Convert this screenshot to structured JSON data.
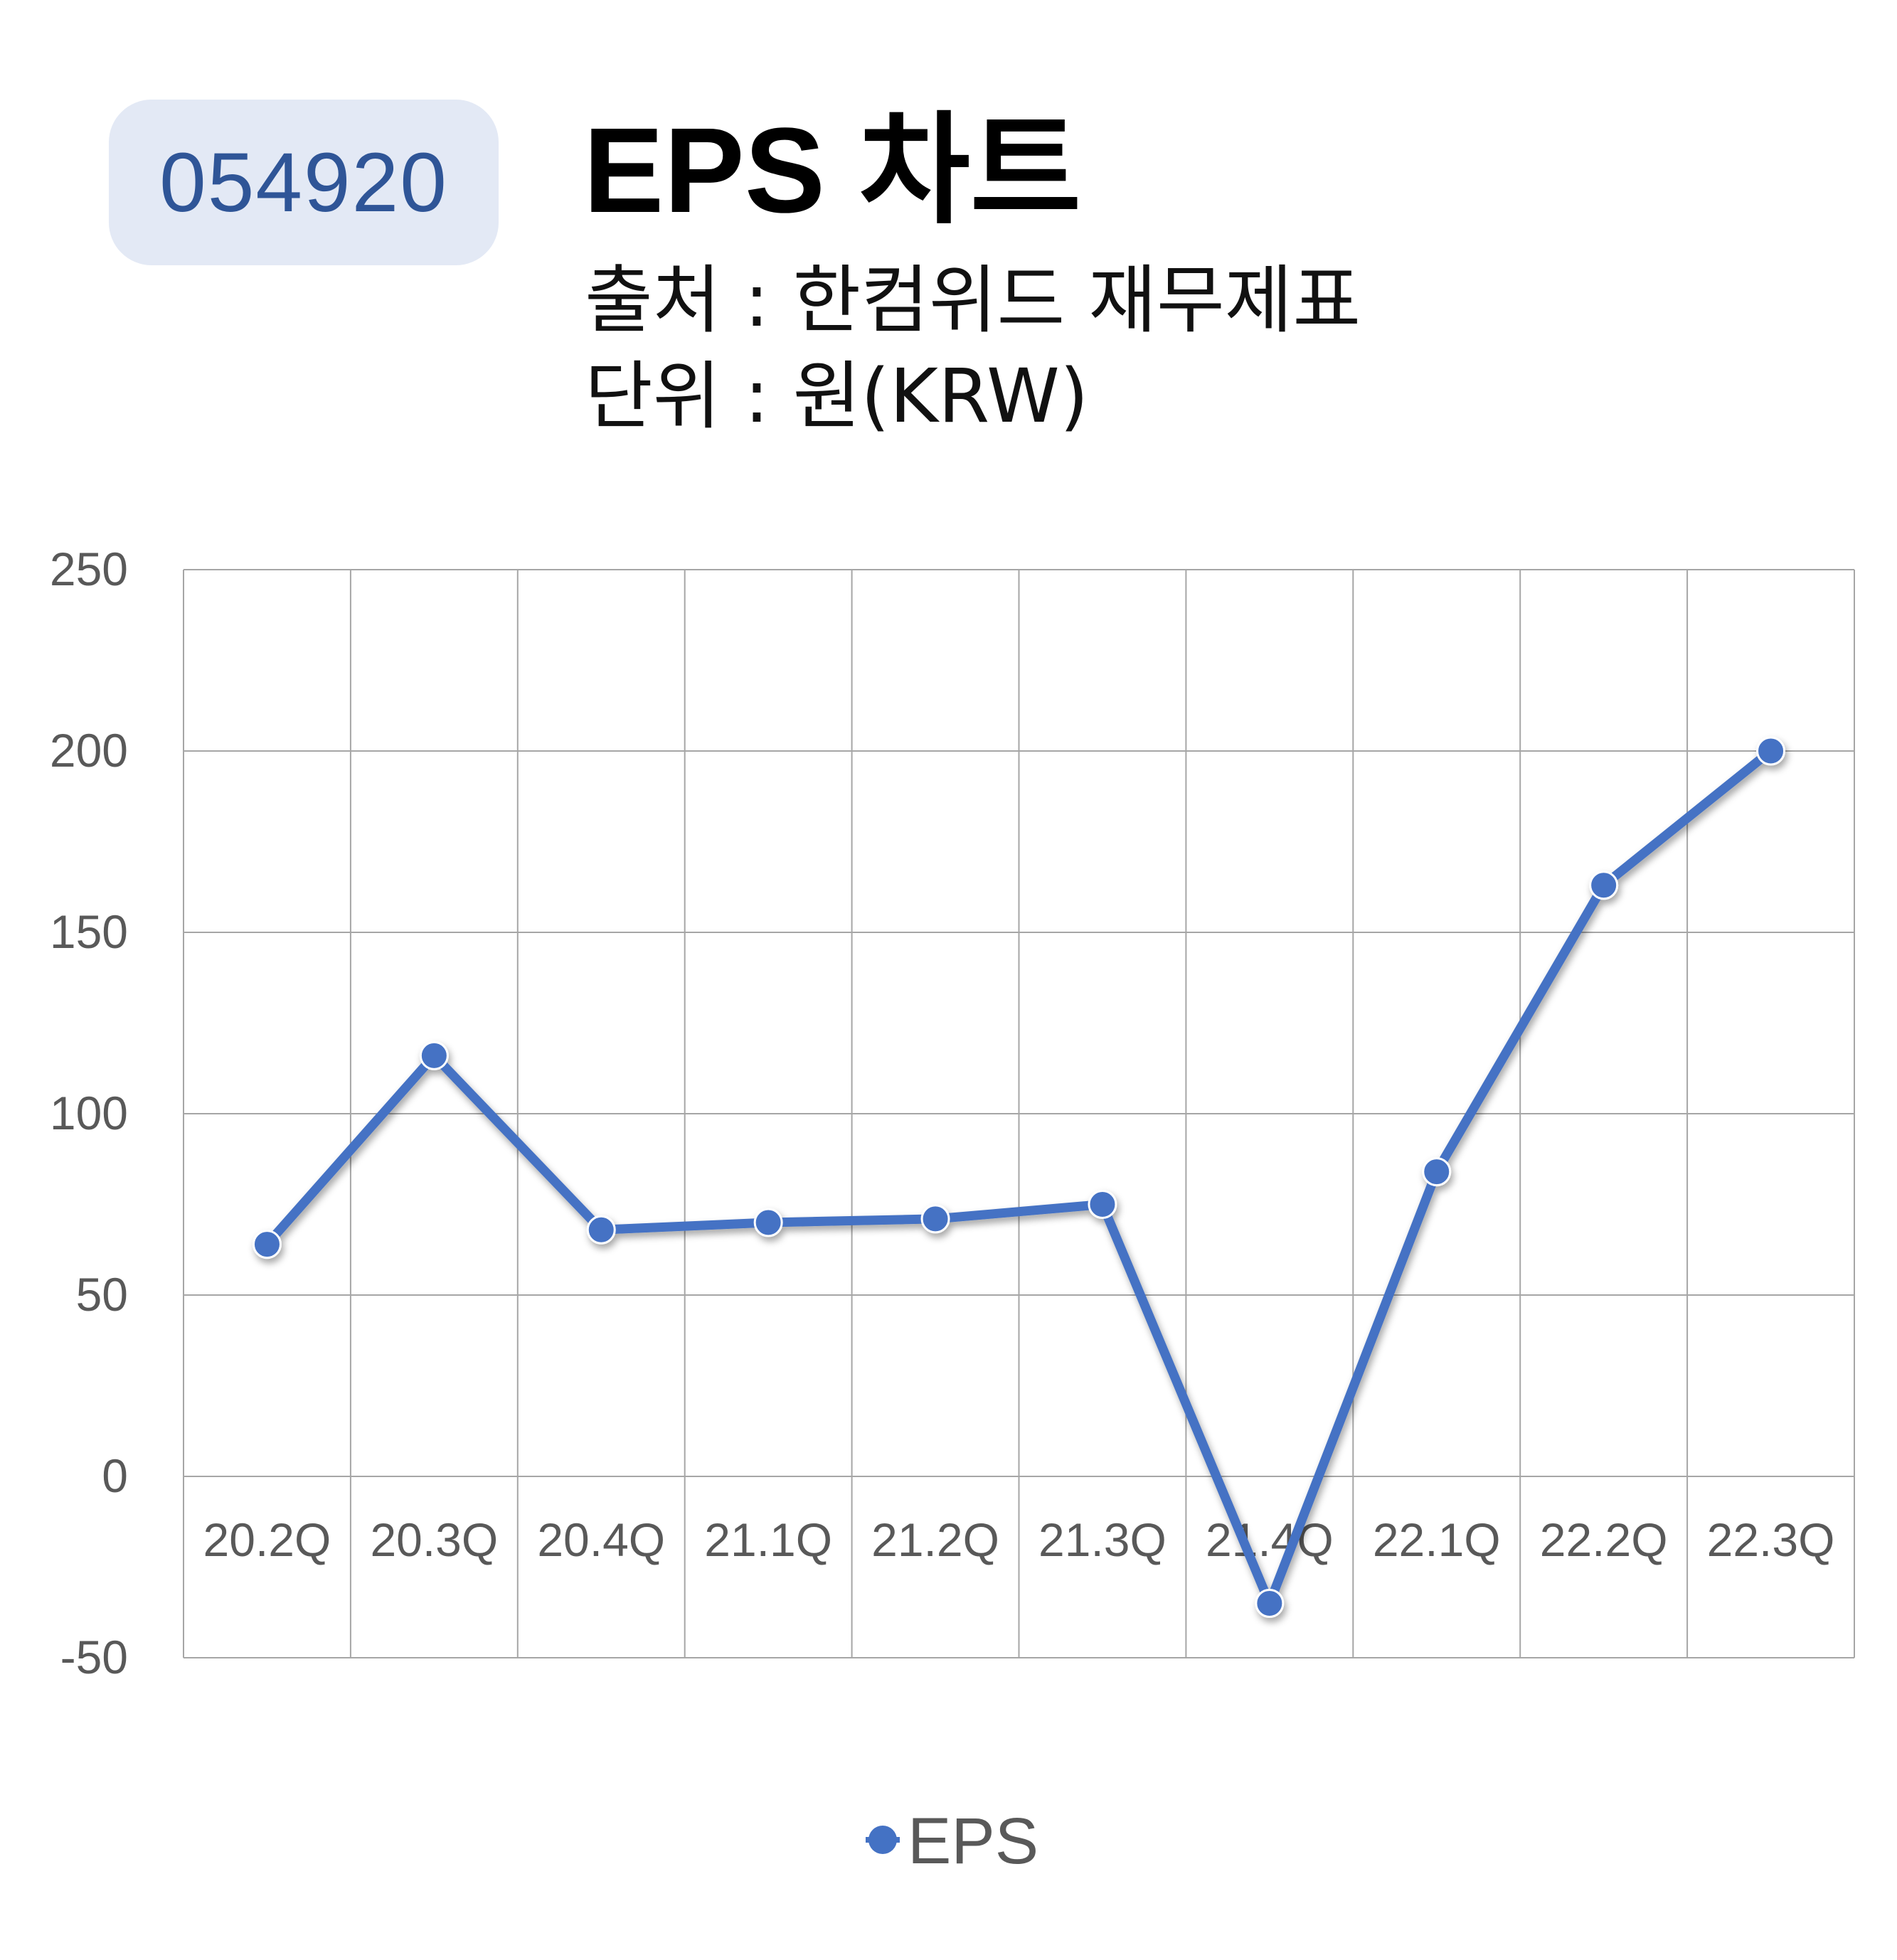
{
  "header": {
    "ticker": "054920",
    "title": "EPS 차트",
    "source": "출처 : 한컴위드 재무제표",
    "unit": "단위 : 원(KRW)"
  },
  "colors": {
    "series": "#4472c4",
    "badge_bg": "#e3e9f5",
    "badge_text": "#2f5597",
    "grid": "#a6a6a6",
    "axis_text": "#595959"
  },
  "chart_data": {
    "type": "line",
    "categories": [
      "20.2Q",
      "20.3Q",
      "20.4Q",
      "21.1Q",
      "21.2Q",
      "21.3Q",
      "21.4Q",
      "22.1Q",
      "22.2Q",
      "22.3Q"
    ],
    "series": [
      {
        "name": "EPS",
        "values": [
          64,
          116,
          68,
          70,
          71,
          75,
          -35,
          84,
          163,
          200
        ]
      }
    ],
    "ylim": [
      -50,
      250
    ],
    "yticks": [
      250,
      200,
      150,
      100,
      50,
      0,
      -50
    ],
    "grid": true,
    "legend": "bottom"
  }
}
